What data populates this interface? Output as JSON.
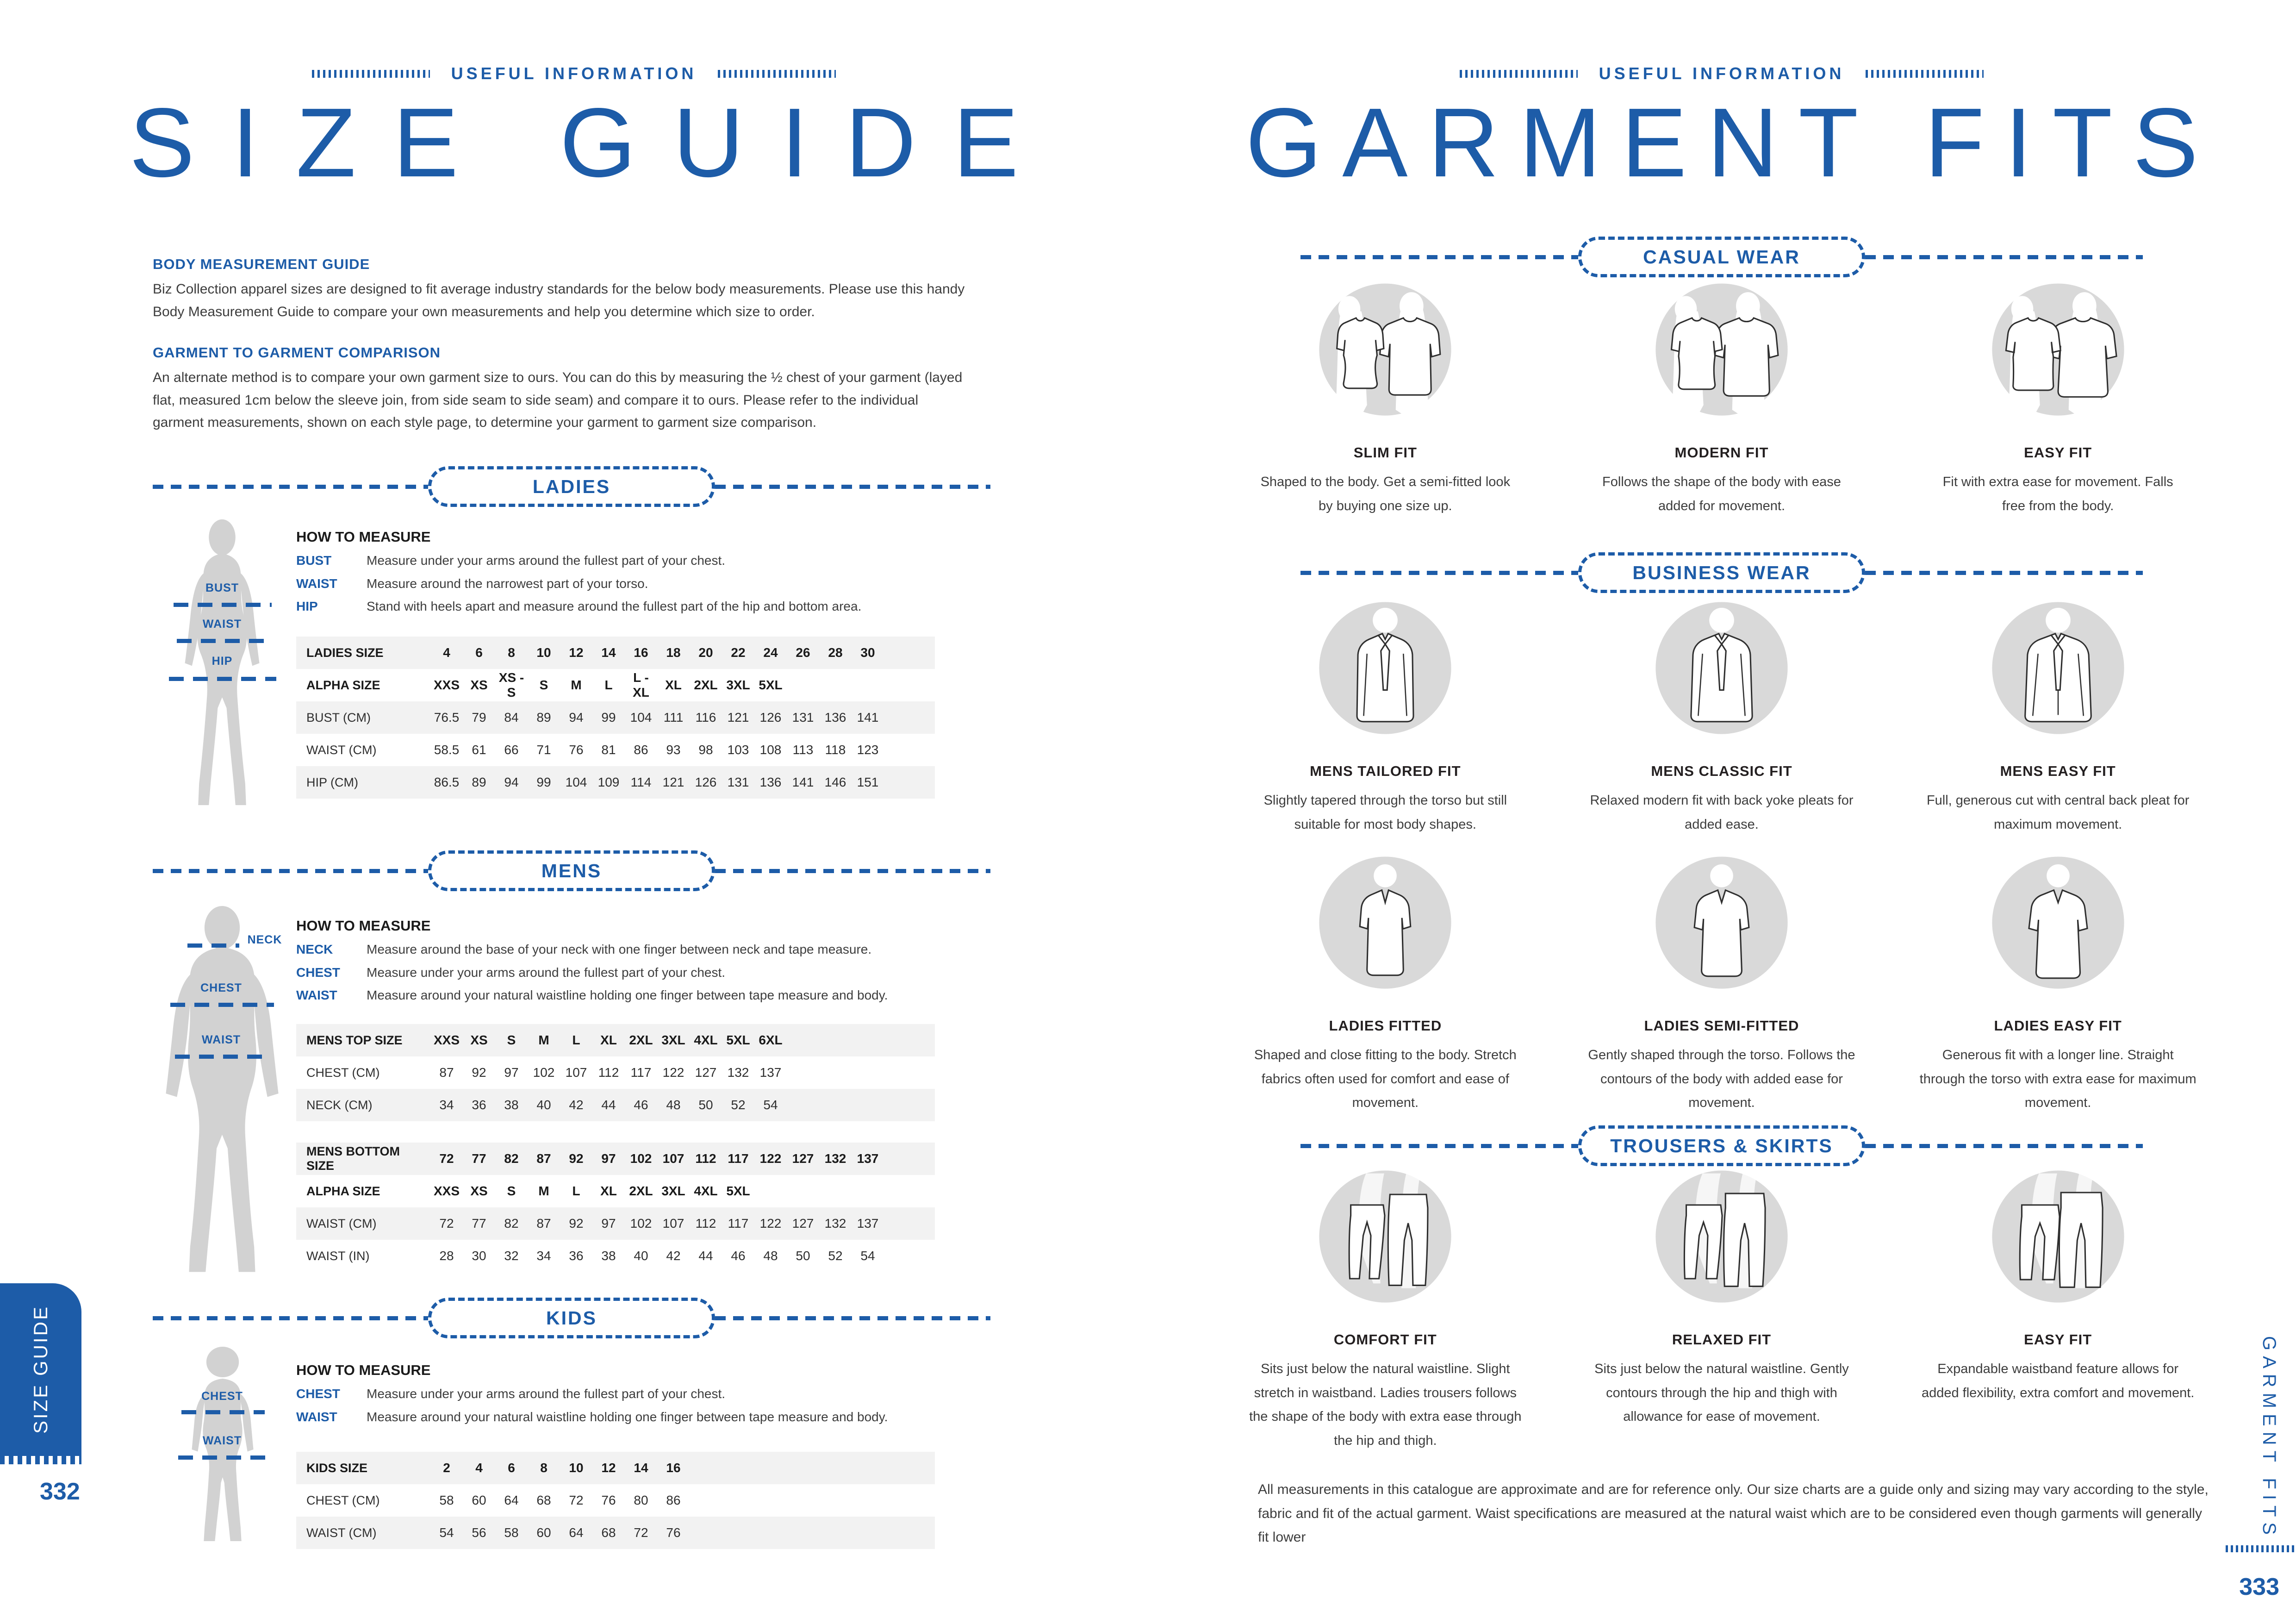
{
  "accent_color": "#1d5ca8",
  "left_page": {
    "kicker": "USEFUL INFORMATION",
    "title": "SIZE GUIDE",
    "body_measurement": {
      "heading": "BODY MEASUREMENT GUIDE",
      "text": "Biz Collection apparel sizes are designed to fit average industry standards for the below body measurements. Please use this handy Body Measurement Guide to compare your own measurements and help you determine which size to order."
    },
    "garment_comparison": {
      "heading": "GARMENT TO GARMENT COMPARISON",
      "text": "An alternate method is to compare your own garment size to ours. You can do this by measuring the ½ chest of your garment (layed flat, measured 1cm below the sleeve join, from side seam to side seam) and compare it to ours. Please refer to the individual garment measurements, shown on each style page, to determine your garment to garment size comparison."
    },
    "how_to_measure_heading": "HOW TO MEASURE",
    "ladies": {
      "section_label": "LADIES",
      "figure_labels": [
        "BUST",
        "WAIST",
        "HIP"
      ],
      "measures": [
        {
          "term": "BUST",
          "desc": "Measure under your arms around the fullest part of your chest."
        },
        {
          "term": "WAIST",
          "desc": "Measure around the narrowest part of your torso."
        },
        {
          "term": "HIP",
          "desc": "Stand with heels apart and measure around the fullest part of the hip and bottom area."
        }
      ],
      "table": {
        "cols": 14,
        "rows": [
          {
            "label": "LADIES SIZE",
            "header": true,
            "values": [
              "4",
              "6",
              "8",
              "10",
              "12",
              "14",
              "16",
              "18",
              "20",
              "22",
              "24",
              "26",
              "28",
              "30"
            ]
          },
          {
            "label": "ALPHA SIZE",
            "header": true,
            "values": [
              "XXS",
              "XS",
              "XS - S",
              "S",
              "M",
              "L",
              "L - XL",
              "XL",
              "2XL",
              "3XL",
              "5XL"
            ]
          },
          {
            "label": "BUST (CM)",
            "header": false,
            "values": [
              "76.5",
              "79",
              "84",
              "89",
              "94",
              "99",
              "104",
              "111",
              "116",
              "121",
              "126",
              "131",
              "136",
              "141"
            ]
          },
          {
            "label": "WAIST (CM)",
            "header": false,
            "values": [
              "58.5",
              "61",
              "66",
              "71",
              "76",
              "81",
              "86",
              "93",
              "98",
              "103",
              "108",
              "113",
              "118",
              "123"
            ]
          },
          {
            "label": "HIP (CM)",
            "header": false,
            "values": [
              "86.5",
              "89",
              "94",
              "99",
              "104",
              "109",
              "114",
              "121",
              "126",
              "131",
              "136",
              "141",
              "146",
              "151"
            ]
          }
        ]
      }
    },
    "mens": {
      "section_label": "MENS",
      "figure_labels": [
        "NECK",
        "CHEST",
        "WAIST"
      ],
      "measures": [
        {
          "term": "NECK",
          "desc": "Measure around the base of your neck with one finger between neck and tape measure."
        },
        {
          "term": "CHEST",
          "desc": "Measure under your arms around the fullest part of your chest."
        },
        {
          "term": "WAIST",
          "desc": "Measure around your natural waistline holding one finger between tape measure and body."
        }
      ],
      "top_table": {
        "cols": 11,
        "rows": [
          {
            "label": "MENS TOP SIZE",
            "header": true,
            "values": [
              "XXS",
              "XS",
              "S",
              "M",
              "L",
              "XL",
              "2XL",
              "3XL",
              "4XL",
              "5XL",
              "6XL"
            ]
          },
          {
            "label": "CHEST (CM)",
            "header": false,
            "values": [
              "87",
              "92",
              "97",
              "102",
              "107",
              "112",
              "117",
              "122",
              "127",
              "132",
              "137"
            ]
          },
          {
            "label": "NECK (CM)",
            "header": false,
            "values": [
              "34",
              "36",
              "38",
              "40",
              "42",
              "44",
              "46",
              "48",
              "50",
              "52",
              "54"
            ]
          }
        ]
      },
      "bottom_table": {
        "cols": 14,
        "rows": [
          {
            "label": "MENS BOTTOM  SIZE",
            "header": true,
            "values": [
              "72",
              "77",
              "82",
              "87",
              "92",
              "97",
              "102",
              "107",
              "112",
              "117",
              "122",
              "127",
              "132",
              "137"
            ]
          },
          {
            "label": "ALPHA SIZE",
            "header": true,
            "values": [
              "XXS",
              "XS",
              "S",
              "M",
              "L",
              "XL",
              "2XL",
              "3XL",
              "4XL",
              "5XL"
            ]
          },
          {
            "label": "WAIST (CM)",
            "header": false,
            "values": [
              "72",
              "77",
              "82",
              "87",
              "92",
              "97",
              "102",
              "107",
              "112",
              "117",
              "122",
              "127",
              "132",
              "137"
            ]
          },
          {
            "label": "WAIST (IN)",
            "header": false,
            "values": [
              "28",
              "30",
              "32",
              "34",
              "36",
              "38",
              "40",
              "42",
              "44",
              "46",
              "48",
              "50",
              "52",
              "54"
            ]
          }
        ]
      }
    },
    "kids": {
      "section_label": "KIDS",
      "figure_labels": [
        "CHEST",
        "WAIST"
      ],
      "measures": [
        {
          "term": "CHEST",
          "desc": "Measure under your arms around the fullest part of your chest."
        },
        {
          "term": "WAIST",
          "desc": "Measure around your natural waistline holding one finger between tape measure and body."
        }
      ],
      "table": {
        "cols": 8,
        "rows": [
          {
            "label": "KIDS SIZE",
            "header": true,
            "values": [
              "2",
              "4",
              "6",
              "8",
              "10",
              "12",
              "14",
              "16"
            ]
          },
          {
            "label": "CHEST (CM)",
            "header": false,
            "values": [
              "58",
              "60",
              "64",
              "68",
              "72",
              "76",
              "80",
              "86"
            ]
          },
          {
            "label": "WAIST (CM)",
            "header": false,
            "values": [
              "54",
              "56",
              "58",
              "60",
              "64",
              "68",
              "72",
              "76"
            ]
          }
        ]
      }
    },
    "tab_label": "SIZE GUIDE",
    "page_number": "332"
  },
  "right_page": {
    "kicker": "USEFUL INFORMATION",
    "title": "GARMENT FITS",
    "casual": {
      "section_label": "CASUAL WEAR",
      "items": [
        {
          "name": "SLIM FIT",
          "desc": "Shaped to the body. Get a semi-fitted look by buying one size up."
        },
        {
          "name": "MODERN FIT",
          "desc": "Follows the shape of the body with ease added for movement."
        },
        {
          "name": "EASY FIT",
          "desc": "Fit with extra ease for movement. Falls free from the body."
        }
      ]
    },
    "business": {
      "section_label": "BUSINESS WEAR",
      "mens": [
        {
          "name": "MENS TAILORED FIT",
          "desc": "Slightly tapered through the torso but still suitable for most body shapes."
        },
        {
          "name": "MENS CLASSIC FIT",
          "desc": "Relaxed  modern fit with back yoke pleats for added ease."
        },
        {
          "name": "MENS EASY FIT",
          "desc": "Full, generous cut with central back pleat for maximum movement."
        }
      ],
      "ladies": [
        {
          "name": "LADIES FITTED",
          "desc": "Shaped and close fitting to the body. Stretch fabrics often used for comfort and ease of movement."
        },
        {
          "name": "LADIES SEMI-FITTED",
          "desc": "Gently shaped through the torso. Follows the contours of the body with added ease for movement."
        },
        {
          "name": "LADIES EASY FIT",
          "desc": "Generous fit with a longer line. Straight through the torso with extra ease for maximum movement."
        }
      ]
    },
    "trousers": {
      "section_label": "TROUSERS & SKIRTS",
      "items": [
        {
          "name": "COMFORT FIT",
          "desc": "Sits just below the natural waistline. Slight stretch in waistband. Ladies trousers follows the shape of the body with extra ease through the hip and thigh."
        },
        {
          "name": "RELAXED FIT",
          "desc": "Sits just below the natural waistline. Gently contours through the hip and thigh with allowance for ease of movement."
        },
        {
          "name": "EASY FIT",
          "desc": "Expandable waistband feature allows for added flexibility, extra comfort and movement."
        }
      ]
    },
    "disclaimer": "All measurements in this catalogue are approximate and are for reference only. Our size charts are a guide only and sizing may vary according to the style, fabric and fit of the actual garment. Waist specifications are measured at the natural waist which are to be considered even though garments will generally fit lower",
    "sidebar_label": "GARMENT FITS",
    "page_number": "333"
  }
}
